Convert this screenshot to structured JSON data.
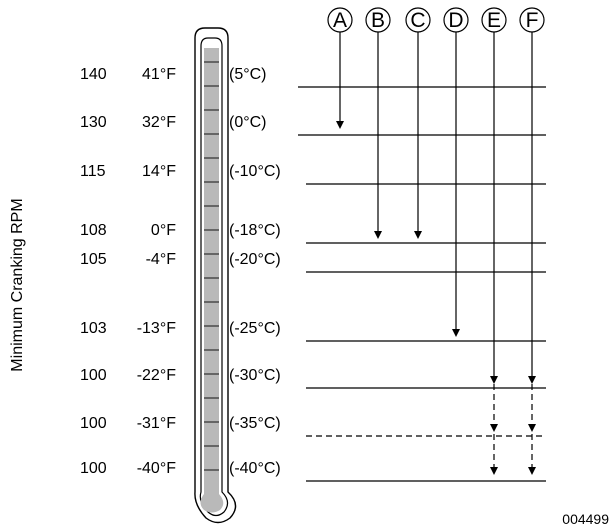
{
  "y_axis_label": "Minimum Cranking RPM",
  "figure_code": "004499",
  "columns": [
    {
      "letter": "A",
      "ends_at_row": 1,
      "style": "solid"
    },
    {
      "letter": "B",
      "ends_at_row": 3,
      "style": "solid"
    },
    {
      "letter": "C",
      "ends_at_row": 3,
      "style": "solid"
    },
    {
      "letter": "D",
      "ends_at_row": 5,
      "style": "solid"
    },
    {
      "letter": "E",
      "ends_at_row": 8,
      "style": "dashed-below-row-6"
    },
    {
      "letter": "F",
      "ends_at_row": 8,
      "style": "dashed-below-row-6"
    }
  ],
  "rows": [
    {
      "rpm": "140",
      "temp_f": "41°F",
      "temp_c": "(5°C)",
      "line": "solid"
    },
    {
      "rpm": "130",
      "temp_f": "32°F",
      "temp_c": "(0°C)",
      "line": "solid"
    },
    {
      "rpm": "115",
      "temp_f": "14°F",
      "temp_c": "(-10°C)",
      "line": "solid"
    },
    {
      "rpm": "108",
      "temp_f": "0°F",
      "temp_c": "(-18°C)",
      "line": "solid"
    },
    {
      "rpm": "105",
      "temp_f": "-4°F",
      "temp_c": "(-20°C)",
      "line": "solid"
    },
    {
      "rpm": "103",
      "temp_f": "-13°F",
      "temp_c": "(-25°C)",
      "line": "solid"
    },
    {
      "rpm": "100",
      "temp_f": "-22°F",
      "temp_c": "(-30°C)",
      "line": "solid"
    },
    {
      "rpm": "100",
      "temp_f": "-31°F",
      "temp_c": "(-35°C)",
      "line": "dashed"
    },
    {
      "rpm": "100",
      "temp_f": "-40°F",
      "temp_c": "(-40°C)",
      "line": "solid"
    }
  ]
}
